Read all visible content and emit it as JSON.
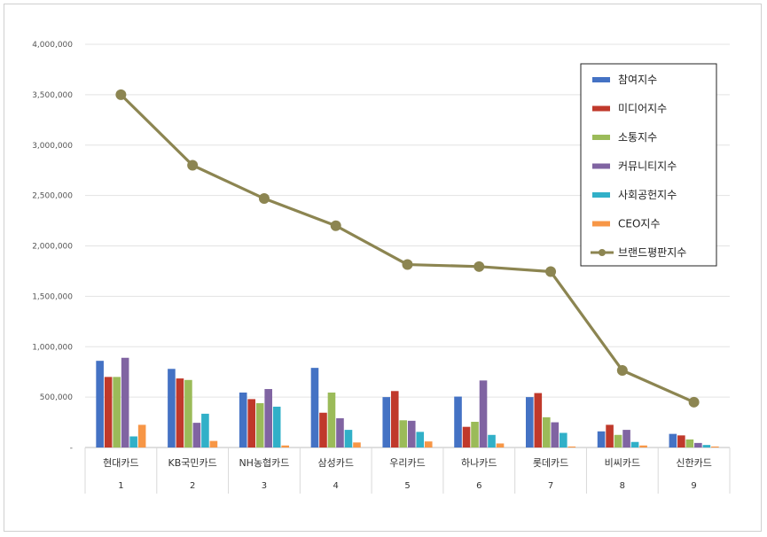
{
  "chart_data": {
    "type": "bar",
    "title": "",
    "xlabel": "",
    "ylabel": "",
    "ylim": [
      0,
      4000000
    ],
    "yticks": [
      "-",
      "500,000",
      "1,000,000",
      "1,500,000",
      "2,000,000",
      "2,500,000",
      "3,000,000",
      "3,500,000",
      "4,000,000"
    ],
    "grid": true,
    "legend_position": "top-right",
    "categories": [
      "현대카드",
      "KB국민카드",
      "NH농협카드",
      "삼성카드",
      "우리카드",
      "하나카드",
      "롯데카드",
      "비씨카드",
      "신한카드"
    ],
    "ranks": [
      "1",
      "2",
      "3",
      "4",
      "5",
      "6",
      "7",
      "8",
      "9"
    ],
    "series": [
      {
        "name": "참여지수",
        "type": "bar",
        "color": "#4472c4",
        "values": [
          860000,
          780000,
          545000,
          790000,
          500000,
          505000,
          500000,
          160000,
          135000
        ]
      },
      {
        "name": "미디어지수",
        "type": "bar",
        "color": "#c0392b",
        "values": [
          700000,
          685000,
          480000,
          345000,
          560000,
          205000,
          540000,
          225000,
          120000
        ]
      },
      {
        "name": "소통지수",
        "type": "bar",
        "color": "#9bbb59",
        "values": [
          700000,
          670000,
          440000,
          545000,
          270000,
          255000,
          300000,
          125000,
          80000
        ]
      },
      {
        "name": "커뮤니티지수",
        "type": "bar",
        "color": "#8064a2",
        "values": [
          890000,
          245000,
          580000,
          290000,
          265000,
          665000,
          250000,
          175000,
          45000
        ]
      },
      {
        "name": "사회공헌지수",
        "type": "bar",
        "color": "#31b0c8",
        "values": [
          110000,
          335000,
          405000,
          175000,
          155000,
          125000,
          145000,
          55000,
          25000
        ]
      },
      {
        "name": "CEO지수",
        "type": "bar",
        "color": "#f79646",
        "values": [
          225000,
          65000,
          20000,
          50000,
          60000,
          40000,
          10000,
          20000,
          10000
        ]
      },
      {
        "name": "브랜드평판지수",
        "type": "line",
        "color": "#8c8551",
        "values": [
          3500000,
          2800000,
          2470000,
          2200000,
          1815000,
          1795000,
          1745000,
          765000,
          450000
        ]
      }
    ]
  }
}
